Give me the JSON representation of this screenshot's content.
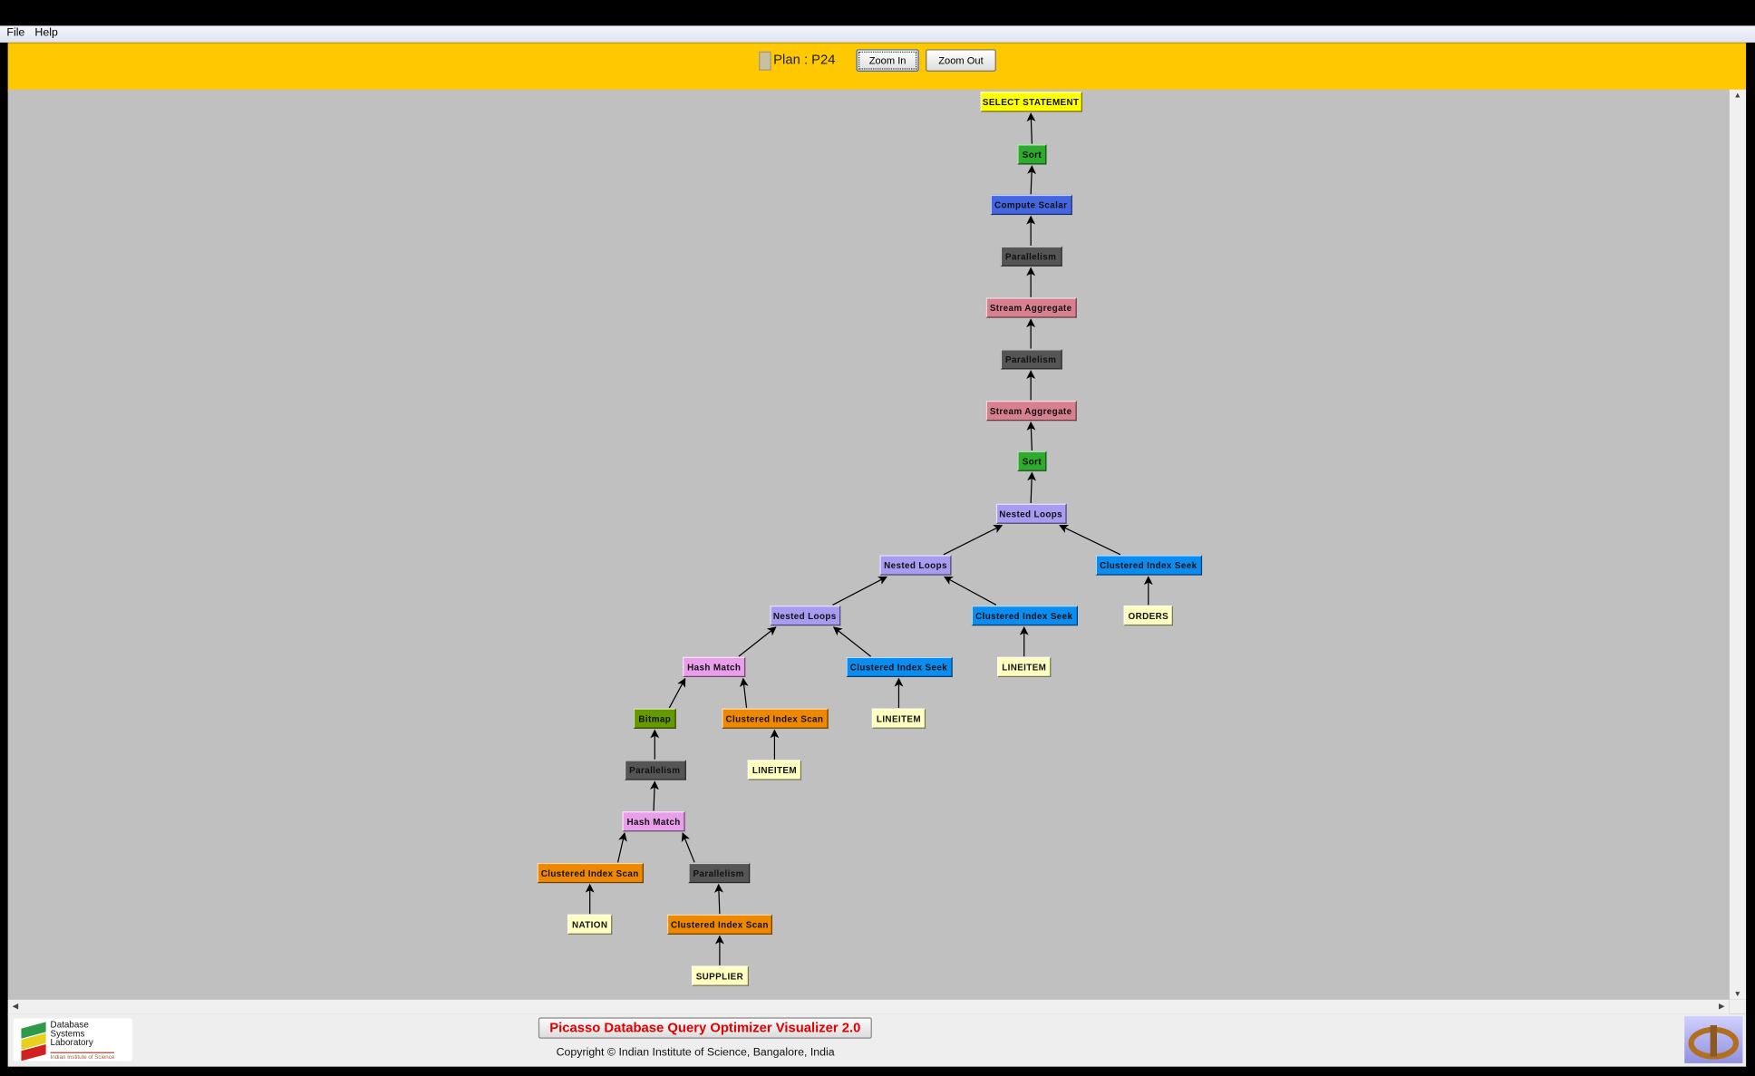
{
  "menu": {
    "items": [
      "File",
      "Help"
    ]
  },
  "toolbar": {
    "plan_label": "Plan : P24",
    "zoom_in": "Zoom In",
    "zoom_out": "Zoom Out"
  },
  "colors": {
    "toolbar": "#ffc800",
    "canvas": "#c0c0c0",
    "SELECT": "#ffff00",
    "Sort": "#2eaa2e",
    "Compute": "#4466e0",
    "Parallelism": "#555555",
    "Stream": "#d98090",
    "Nested": "#a89cf2",
    "Seek": "#0a8cf0",
    "Hash": "#e89ee8",
    "Bitmap": "#669900",
    "Scan": "#ee8800",
    "Table": "#ffffc0"
  },
  "plan_tree": {
    "nodes": [
      {
        "label": "SELECT STATEMENT",
        "kind": "SELECT",
        "parent": null
      },
      {
        "label": "Sort",
        "kind": "Sort",
        "parent": 0
      },
      {
        "label": "Compute Scalar",
        "kind": "Compute",
        "parent": 1
      },
      {
        "label": "Parallelism",
        "kind": "Parallelism",
        "parent": 2
      },
      {
        "label": "Stream Aggregate",
        "kind": "Stream",
        "parent": 3
      },
      {
        "label": "Parallelism",
        "kind": "Parallelism",
        "parent": 4
      },
      {
        "label": "Stream Aggregate",
        "kind": "Stream",
        "parent": 5
      },
      {
        "label": "Sort",
        "kind": "Sort",
        "parent": 6
      },
      {
        "label": "Nested Loops",
        "kind": "Nested",
        "parent": 7
      },
      {
        "label": "Nested Loops",
        "kind": "Nested",
        "parent": 8
      },
      {
        "label": "Clustered Index Seek",
        "kind": "Seek",
        "parent": 8
      },
      {
        "label": "Nested Loops",
        "kind": "Nested",
        "parent": 9
      },
      {
        "label": "Clustered Index Seek",
        "kind": "Seek",
        "parent": 9
      },
      {
        "label": "ORDERS",
        "kind": "Table",
        "parent": 10
      },
      {
        "label": "Hash Match",
        "kind": "Hash",
        "parent": 11
      },
      {
        "label": "Clustered Index Seek",
        "kind": "Seek",
        "parent": 11
      },
      {
        "label": "LINEITEM",
        "kind": "Table",
        "parent": 12
      },
      {
        "label": "Bitmap",
        "kind": "Bitmap",
        "parent": 14
      },
      {
        "label": "Clustered Index Scan",
        "kind": "Scan",
        "parent": 14
      },
      {
        "label": "LINEITEM",
        "kind": "Table",
        "parent": 15
      },
      {
        "label": "Parallelism",
        "kind": "Parallelism",
        "parent": 17
      },
      {
        "label": "LINEITEM",
        "kind": "Table",
        "parent": 18
      },
      {
        "label": "Hash Match",
        "kind": "Hash",
        "parent": 20
      },
      {
        "label": "Clustered Index Scan",
        "kind": "Scan",
        "parent": 22
      },
      {
        "label": "Parallelism",
        "kind": "Parallelism",
        "parent": 22
      },
      {
        "label": "NATION",
        "kind": "Table",
        "parent": 23
      },
      {
        "label": "Clustered Index Scan",
        "kind": "Scan",
        "parent": 24
      },
      {
        "label": "SUPPLIER",
        "kind": "Table",
        "parent": 26
      }
    ]
  },
  "footer": {
    "title": "Picasso Database Query Optimizer Visualizer 2.0",
    "copyright": "Copyright © Indian Institute of Science, Bangalore, India",
    "lab_logo": {
      "line1": "Database",
      "line2": "Systems",
      "line3": "Laboratory",
      "sub": "Indian Institute of Science"
    }
  }
}
